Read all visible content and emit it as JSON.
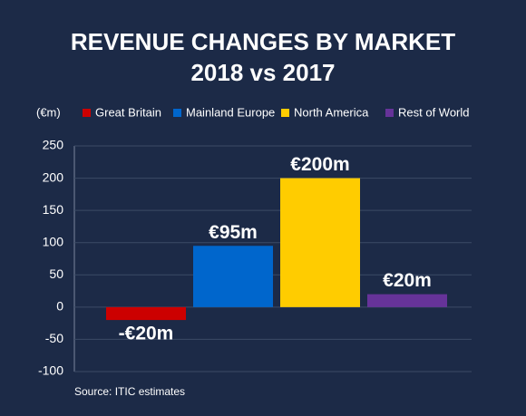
{
  "chart_data": {
    "type": "bar",
    "title": "REVENUE CHANGES BY MARKET",
    "subtitle": "2018 vs 2017",
    "y_label": "(€m)",
    "series": [
      {
        "name": "Great Britain",
        "color": "#cc0000",
        "values": [
          -20
        ],
        "value_labels": [
          "-€20m"
        ]
      },
      {
        "name": "Mainland Europe",
        "color": "#0066cc",
        "values": [
          95
        ],
        "value_labels": [
          "€95m"
        ]
      },
      {
        "name": "North America",
        "color": "#ffcc00",
        "values": [
          200
        ],
        "value_labels": [
          "€200m"
        ]
      },
      {
        "name": "Rest of World",
        "color": "#663399",
        "values": [
          20
        ],
        "value_labels": [
          "€20m"
        ]
      }
    ],
    "ylim": [
      -100,
      250
    ],
    "yticks": [
      -100,
      -50,
      0,
      50,
      100,
      150,
      200,
      250
    ],
    "grid": true,
    "source": "Source: ITIC estimates"
  }
}
